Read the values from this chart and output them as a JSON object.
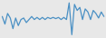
{
  "values": [
    -0.5,
    -3.0,
    0.5,
    -1.0,
    -4.5,
    -1.0,
    -3.5,
    -1.5,
    -1.0,
    -2.5,
    -1.5,
    -0.5,
    -1.5,
    -0.8,
    -1.5,
    -0.8,
    -1.5,
    -0.8,
    -1.2,
    -0.8,
    -1.2,
    -0.8,
    -1.5,
    -0.8,
    -1.5,
    4.0,
    -6.5,
    3.5,
    1.5,
    2.5,
    -1.5,
    2.0,
    1.0,
    -1.5,
    1.5,
    0.5,
    -1.0,
    1.0,
    -0.5
  ],
  "line_color": "#4a90c4",
  "background_color": "#e8e8e8",
  "linewidth": 0.9
}
